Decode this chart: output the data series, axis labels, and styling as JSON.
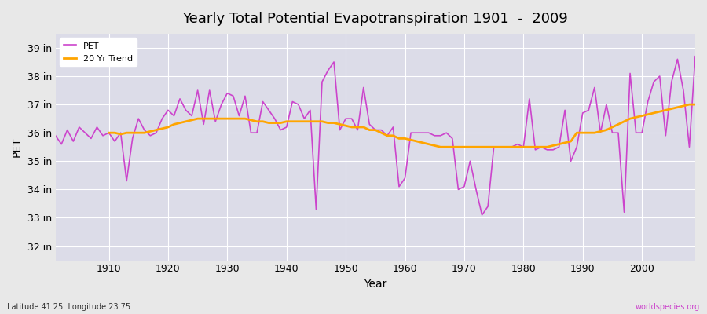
{
  "title": "Yearly Total Potential Evapotranspiration 1901  -  2009",
  "xlabel": "Year",
  "ylabel": "PET",
  "subtitle_left": "Latitude 41.25  Longitude 23.75",
  "subtitle_right": "worldspecies.org",
  "pet_color": "#cc44cc",
  "trend_color": "#ffa500",
  "ylim": [
    31.5,
    39.5
  ],
  "yticks": [
    32,
    33,
    34,
    35,
    36,
    37,
    38,
    39
  ],
  "ytick_labels": [
    "32 in",
    "33 in",
    "34 in",
    "35 in",
    "36 in",
    "37 in",
    "38 in",
    "39 in"
  ],
  "years": [
    1901,
    1902,
    1903,
    1904,
    1905,
    1906,
    1907,
    1908,
    1909,
    1910,
    1911,
    1912,
    1913,
    1914,
    1915,
    1916,
    1917,
    1918,
    1919,
    1920,
    1921,
    1922,
    1923,
    1924,
    1925,
    1926,
    1927,
    1928,
    1929,
    1930,
    1931,
    1932,
    1933,
    1934,
    1935,
    1936,
    1937,
    1938,
    1939,
    1940,
    1941,
    1942,
    1943,
    1944,
    1945,
    1946,
    1947,
    1948,
    1949,
    1950,
    1951,
    1952,
    1953,
    1954,
    1955,
    1956,
    1957,
    1958,
    1959,
    1960,
    1961,
    1962,
    1963,
    1964,
    1965,
    1966,
    1967,
    1968,
    1969,
    1970,
    1971,
    1972,
    1973,
    1974,
    1975,
    1976,
    1977,
    1978,
    1979,
    1980,
    1981,
    1982,
    1983,
    1984,
    1985,
    1986,
    1987,
    1988,
    1989,
    1990,
    1991,
    1992,
    1993,
    1994,
    1995,
    1996,
    1997,
    1998,
    1999,
    2000,
    2001,
    2002,
    2003,
    2004,
    2005,
    2006,
    2007,
    2008,
    2009
  ],
  "pet": [
    35.9,
    35.6,
    36.1,
    35.7,
    36.2,
    36.0,
    35.8,
    36.2,
    35.9,
    36.0,
    35.7,
    36.0,
    34.3,
    35.8,
    36.5,
    36.1,
    35.9,
    36.0,
    36.5,
    36.8,
    36.6,
    37.2,
    36.8,
    36.6,
    37.5,
    36.3,
    37.5,
    36.4,
    37.0,
    37.4,
    37.3,
    36.6,
    37.3,
    36.0,
    36.0,
    37.1,
    36.8,
    36.5,
    36.1,
    36.2,
    37.1,
    37.0,
    36.5,
    36.8,
    33.3,
    37.8,
    38.2,
    38.5,
    36.1,
    36.5,
    36.5,
    36.1,
    37.6,
    36.3,
    36.1,
    36.1,
    35.9,
    36.2,
    34.1,
    34.4,
    36.0,
    36.0,
    36.0,
    36.0,
    35.9,
    35.9,
    36.0,
    35.8,
    34.0,
    34.1,
    35.0,
    34.0,
    33.1,
    33.4,
    35.5,
    35.5,
    35.5,
    35.5,
    35.6,
    35.5,
    37.2,
    35.4,
    35.5,
    35.4,
    35.4,
    35.5,
    36.8,
    35.0,
    35.5,
    36.7,
    36.8,
    37.6,
    36.0,
    37.0,
    36.0,
    36.0,
    33.2,
    38.1,
    36.0,
    36.0,
    37.1,
    37.8,
    38.0,
    35.9,
    37.8,
    38.6,
    37.5,
    35.5,
    38.7
  ],
  "trend_years": [
    1910,
    1911,
    1912,
    1913,
    1914,
    1915,
    1916,
    1917,
    1918,
    1919,
    1920,
    1921,
    1922,
    1923,
    1924,
    1925,
    1926,
    1927,
    1928,
    1929,
    1930,
    1931,
    1932,
    1933,
    1934,
    1935,
    1936,
    1937,
    1938,
    1939,
    1940,
    1941,
    1942,
    1943,
    1944,
    1945,
    1946,
    1947,
    1948,
    1949,
    1950,
    1951,
    1952,
    1953,
    1954,
    1955,
    1956,
    1957,
    1958,
    1959,
    1960,
    1961,
    1962,
    1963,
    1964,
    1965,
    1966,
    1967,
    1968,
    1969,
    1970,
    1971,
    1972,
    1973,
    1974,
    1975,
    1976,
    1977,
    1978,
    1979,
    1980,
    1981,
    1982,
    1983,
    1984,
    1985,
    1986,
    1987,
    1988,
    1989,
    1990,
    1991,
    1992,
    1993,
    1994,
    1995,
    1996,
    1997,
    1998,
    1999,
    2000,
    2001,
    2002,
    2003,
    2004,
    2005,
    2006,
    2007,
    2008,
    2009
  ],
  "trend": [
    36.0,
    36.0,
    35.95,
    36.0,
    36.0,
    36.0,
    36.0,
    36.05,
    36.1,
    36.15,
    36.2,
    36.3,
    36.35,
    36.4,
    36.45,
    36.5,
    36.5,
    36.5,
    36.5,
    36.5,
    36.5,
    36.5,
    36.5,
    36.5,
    36.45,
    36.4,
    36.4,
    36.35,
    36.35,
    36.35,
    36.4,
    36.4,
    36.4,
    36.4,
    36.4,
    36.4,
    36.4,
    36.35,
    36.35,
    36.3,
    36.25,
    36.2,
    36.2,
    36.2,
    36.1,
    36.1,
    36.0,
    35.9,
    35.9,
    35.8,
    35.8,
    35.75,
    35.7,
    35.65,
    35.6,
    35.55,
    35.5,
    35.5,
    35.5,
    35.5,
    35.5,
    35.5,
    35.5,
    35.5,
    35.5,
    35.5,
    35.5,
    35.5,
    35.5,
    35.5,
    35.5,
    35.5,
    35.5,
    35.5,
    35.5,
    35.55,
    35.6,
    35.65,
    35.7,
    36.0,
    36.0,
    36.0,
    36.0,
    36.05,
    36.1,
    36.2,
    36.3,
    36.4,
    36.5,
    36.55,
    36.6,
    36.65,
    36.7,
    36.75,
    36.8,
    36.85,
    36.9,
    36.95,
    37.0,
    37.0
  ]
}
